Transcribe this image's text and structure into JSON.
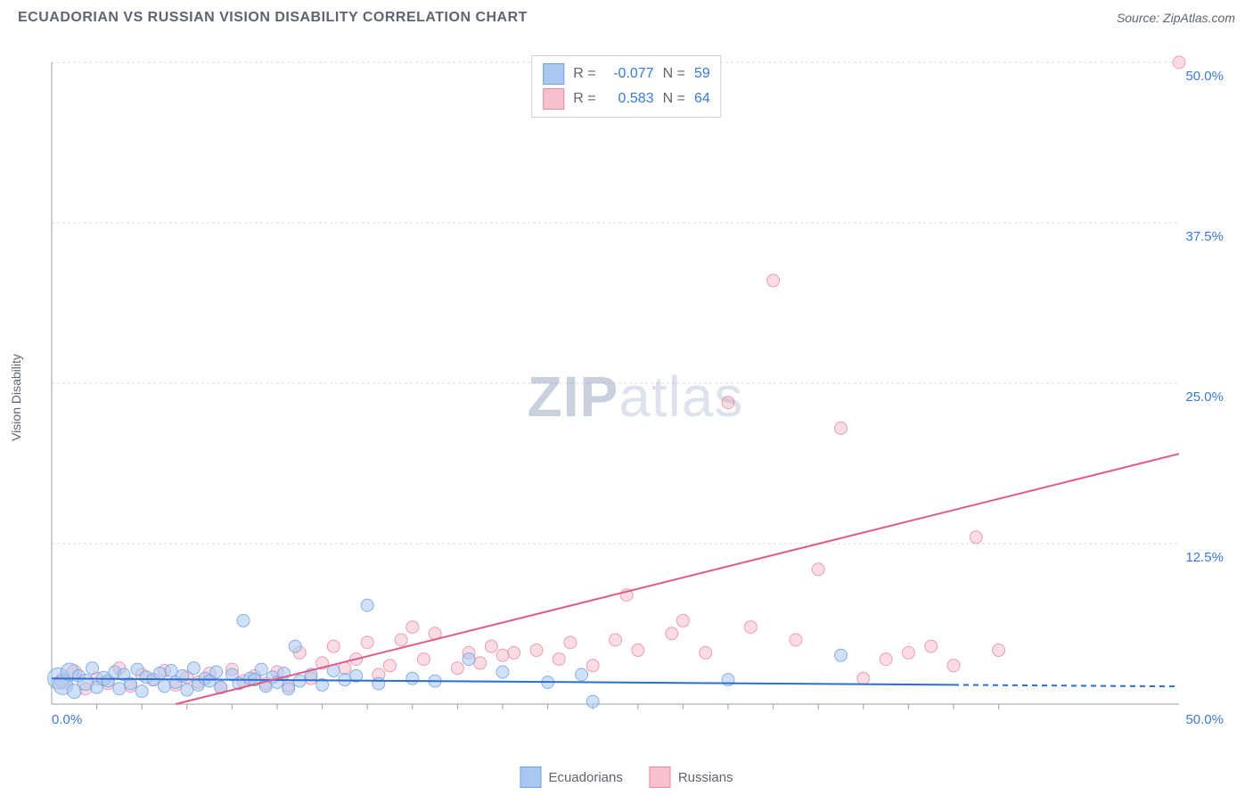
{
  "header": {
    "title": "ECUADORIAN VS RUSSIAN VISION DISABILITY CORRELATION CHART",
    "source_prefix": "Source: ",
    "source_site": "ZipAtlas.com"
  },
  "watermark": {
    "zip": "ZIP",
    "atlas": "atlas"
  },
  "axes": {
    "y_label": "Vision Disability",
    "x_min": 0,
    "x_max": 50,
    "y_min": 0,
    "y_max": 50,
    "x_tick_labels": {
      "start": "0.0%",
      "end": "50.0%"
    },
    "y_ticks": [
      {
        "v": 12.5,
        "label": "12.5%"
      },
      {
        "v": 25.0,
        "label": "25.0%"
      },
      {
        "v": 37.5,
        "label": "37.5%"
      },
      {
        "v": 50.0,
        "label": "50.0%"
      }
    ],
    "x_minor_ticks": [
      2,
      4,
      6,
      8,
      10,
      12,
      14,
      16,
      18,
      20,
      22,
      24,
      26,
      28,
      30,
      32,
      34,
      36,
      38,
      40,
      42
    ],
    "y_tick_label_color": "#3a7bd5",
    "x_tick_label_color": "#3a7bd5",
    "axis_label_color": "#5f6470",
    "grid_color": "#d8d8d8",
    "axis_line_color": "#9aa0a6"
  },
  "styling": {
    "blue_fill": "#a9c7f0",
    "blue_stroke": "#6fa1e0",
    "pink_fill": "#f6c1cd",
    "pink_stroke": "#e88aa0",
    "blue_line": "#2a6fd6",
    "pink_line": "#e05a89",
    "marker_radius": 7,
    "marker_opacity": 0.55,
    "line_width": 2,
    "background": "#ffffff",
    "title_fontsize": 16,
    "label_fontsize": 14
  },
  "stats_legend": {
    "rows": [
      {
        "swatch_fill": "#a9c7f0",
        "swatch_stroke": "#6fa1e0",
        "r_label": "R =",
        "r": "-0.077",
        "n_label": "N =",
        "n": "59"
      },
      {
        "swatch_fill": "#f6c1cd",
        "swatch_stroke": "#e88aa0",
        "r_label": "R =",
        "r": "0.583",
        "n_label": "N =",
        "n": "64"
      }
    ]
  },
  "bottom_legend": {
    "items": [
      {
        "label": "Ecuadorians",
        "fill": "#a9c7f0",
        "stroke": "#6fa1e0"
      },
      {
        "label": "Russians",
        "fill": "#f6c1cd",
        "stroke": "#e88aa0"
      }
    ]
  },
  "trend_lines": {
    "blue": {
      "x1": 0,
      "y1": 2.0,
      "x2": 40,
      "y2": 1.5,
      "dashed_to_x": 50
    },
    "pink": {
      "x1": 5.5,
      "y1": 0,
      "x2": 50,
      "y2": 19.5
    }
  },
  "series": {
    "ecuadorians": [
      {
        "x": 0.3,
        "y": 2.0,
        "r": 12
      },
      {
        "x": 0.5,
        "y": 1.5,
        "r": 11
      },
      {
        "x": 0.8,
        "y": 2.5,
        "r": 10
      },
      {
        "x": 1.0,
        "y": 1.0,
        "r": 8
      },
      {
        "x": 1.2,
        "y": 2.2,
        "r": 7
      },
      {
        "x": 1.5,
        "y": 1.7,
        "r": 9
      },
      {
        "x": 1.8,
        "y": 2.8,
        "r": 7
      },
      {
        "x": 2.0,
        "y": 1.3,
        "r": 7
      },
      {
        "x": 2.3,
        "y": 2.0,
        "r": 8
      },
      {
        "x": 2.5,
        "y": 1.8,
        "r": 7
      },
      {
        "x": 2.8,
        "y": 2.5,
        "r": 7
      },
      {
        "x": 3.0,
        "y": 1.2,
        "r": 7
      },
      {
        "x": 3.2,
        "y": 2.3,
        "r": 7
      },
      {
        "x": 3.5,
        "y": 1.6,
        "r": 7
      },
      {
        "x": 3.8,
        "y": 2.7,
        "r": 7
      },
      {
        "x": 4.0,
        "y": 1.0,
        "r": 7
      },
      {
        "x": 4.2,
        "y": 2.1,
        "r": 7
      },
      {
        "x": 4.5,
        "y": 1.9,
        "r": 7
      },
      {
        "x": 4.8,
        "y": 2.4,
        "r": 7
      },
      {
        "x": 5.0,
        "y": 1.4,
        "r": 7
      },
      {
        "x": 5.3,
        "y": 2.6,
        "r": 7
      },
      {
        "x": 5.5,
        "y": 1.7,
        "r": 7
      },
      {
        "x": 5.8,
        "y": 2.2,
        "r": 7
      },
      {
        "x": 6.0,
        "y": 1.1,
        "r": 7
      },
      {
        "x": 6.3,
        "y": 2.8,
        "r": 7
      },
      {
        "x": 6.5,
        "y": 1.5,
        "r": 7
      },
      {
        "x": 6.8,
        "y": 2.0,
        "r": 7
      },
      {
        "x": 7.0,
        "y": 1.8,
        "r": 7
      },
      {
        "x": 7.3,
        "y": 2.5,
        "r": 7
      },
      {
        "x": 7.5,
        "y": 1.3,
        "r": 7
      },
      {
        "x": 8.0,
        "y": 2.3,
        "r": 7
      },
      {
        "x": 8.3,
        "y": 1.6,
        "r": 7
      },
      {
        "x": 8.5,
        "y": 6.5,
        "r": 7
      },
      {
        "x": 8.8,
        "y": 2.0,
        "r": 7
      },
      {
        "x": 9.0,
        "y": 1.9,
        "r": 7
      },
      {
        "x": 9.3,
        "y": 2.7,
        "r": 7
      },
      {
        "x": 9.5,
        "y": 1.4,
        "r": 7
      },
      {
        "x": 9.8,
        "y": 2.1,
        "r": 7
      },
      {
        "x": 10.0,
        "y": 1.7,
        "r": 7
      },
      {
        "x": 10.3,
        "y": 2.4,
        "r": 7
      },
      {
        "x": 10.5,
        "y": 1.2,
        "r": 7
      },
      {
        "x": 10.8,
        "y": 4.5,
        "r": 7
      },
      {
        "x": 11.0,
        "y": 1.8,
        "r": 7
      },
      {
        "x": 11.5,
        "y": 2.3,
        "r": 7
      },
      {
        "x": 12.0,
        "y": 1.5,
        "r": 7
      },
      {
        "x": 12.5,
        "y": 2.6,
        "r": 7
      },
      {
        "x": 13.0,
        "y": 1.9,
        "r": 7
      },
      {
        "x": 13.5,
        "y": 2.2,
        "r": 7
      },
      {
        "x": 14.0,
        "y": 7.7,
        "r": 7
      },
      {
        "x": 14.5,
        "y": 1.6,
        "r": 7
      },
      {
        "x": 16.0,
        "y": 2.0,
        "r": 7
      },
      {
        "x": 17.0,
        "y": 1.8,
        "r": 7
      },
      {
        "x": 18.5,
        "y": 3.5,
        "r": 7
      },
      {
        "x": 20.0,
        "y": 2.5,
        "r": 7
      },
      {
        "x": 22.0,
        "y": 1.7,
        "r": 7
      },
      {
        "x": 23.5,
        "y": 2.3,
        "r": 7
      },
      {
        "x": 24.0,
        "y": 0.2,
        "r": 7
      },
      {
        "x": 30.0,
        "y": 1.9,
        "r": 7
      },
      {
        "x": 35.0,
        "y": 3.8,
        "r": 7
      }
    ],
    "russians": [
      {
        "x": 0.5,
        "y": 1.8,
        "r": 9
      },
      {
        "x": 1.0,
        "y": 2.5,
        "r": 8
      },
      {
        "x": 1.5,
        "y": 1.2,
        "r": 7
      },
      {
        "x": 2.0,
        "y": 2.0,
        "r": 7
      },
      {
        "x": 2.5,
        "y": 1.6,
        "r": 7
      },
      {
        "x": 3.0,
        "y": 2.8,
        "r": 7
      },
      {
        "x": 3.5,
        "y": 1.4,
        "r": 7
      },
      {
        "x": 4.0,
        "y": 2.3,
        "r": 7
      },
      {
        "x": 4.5,
        "y": 1.9,
        "r": 7
      },
      {
        "x": 5.0,
        "y": 2.6,
        "r": 7
      },
      {
        "x": 5.5,
        "y": 1.5,
        "r": 7
      },
      {
        "x": 6.0,
        "y": 2.1,
        "r": 7
      },
      {
        "x": 6.5,
        "y": 1.7,
        "r": 7
      },
      {
        "x": 7.0,
        "y": 2.4,
        "r": 7
      },
      {
        "x": 7.5,
        "y": 1.3,
        "r": 7
      },
      {
        "x": 8.0,
        "y": 2.7,
        "r": 7
      },
      {
        "x": 8.5,
        "y": 1.8,
        "r": 7
      },
      {
        "x": 9.0,
        "y": 2.2,
        "r": 7
      },
      {
        "x": 9.5,
        "y": 1.6,
        "r": 7
      },
      {
        "x": 10.0,
        "y": 2.5,
        "r": 7
      },
      {
        "x": 10.5,
        "y": 1.4,
        "r": 7
      },
      {
        "x": 11.0,
        "y": 4.0,
        "r": 7
      },
      {
        "x": 11.5,
        "y": 2.0,
        "r": 7
      },
      {
        "x": 12.0,
        "y": 3.2,
        "r": 7
      },
      {
        "x": 12.5,
        "y": 4.5,
        "r": 7
      },
      {
        "x": 13.0,
        "y": 2.8,
        "r": 7
      },
      {
        "x": 13.5,
        "y": 3.5,
        "r": 7
      },
      {
        "x": 14.0,
        "y": 4.8,
        "r": 7
      },
      {
        "x": 14.5,
        "y": 2.3,
        "r": 7
      },
      {
        "x": 15.0,
        "y": 3.0,
        "r": 7
      },
      {
        "x": 15.5,
        "y": 5.0,
        "r": 7
      },
      {
        "x": 16.0,
        "y": 6.0,
        "r": 7
      },
      {
        "x": 16.5,
        "y": 3.5,
        "r": 7
      },
      {
        "x": 17.0,
        "y": 5.5,
        "r": 7
      },
      {
        "x": 18.0,
        "y": 2.8,
        "r": 7
      },
      {
        "x": 18.5,
        "y": 4.0,
        "r": 7
      },
      {
        "x": 19.0,
        "y": 3.2,
        "r": 7
      },
      {
        "x": 19.5,
        "y": 4.5,
        "r": 7
      },
      {
        "x": 20.5,
        "y": 4.0,
        "r": 7
      },
      {
        "x": 20.0,
        "y": 3.8,
        "r": 7
      },
      {
        "x": 21.5,
        "y": 4.2,
        "r": 7
      },
      {
        "x": 22.5,
        "y": 3.5,
        "r": 7
      },
      {
        "x": 23.0,
        "y": 4.8,
        "r": 7
      },
      {
        "x": 24.0,
        "y": 3.0,
        "r": 7
      },
      {
        "x": 25.0,
        "y": 5.0,
        "r": 7
      },
      {
        "x": 25.5,
        "y": 8.5,
        "r": 7
      },
      {
        "x": 26.0,
        "y": 4.2,
        "r": 7
      },
      {
        "x": 27.5,
        "y": 5.5,
        "r": 7
      },
      {
        "x": 28.0,
        "y": 6.5,
        "r": 7
      },
      {
        "x": 29.0,
        "y": 4.0,
        "r": 7
      },
      {
        "x": 30.0,
        "y": 23.5,
        "r": 7
      },
      {
        "x": 31.0,
        "y": 6.0,
        "r": 7
      },
      {
        "x": 32.0,
        "y": 33.0,
        "r": 7
      },
      {
        "x": 33.0,
        "y": 5.0,
        "r": 7
      },
      {
        "x": 34.0,
        "y": 10.5,
        "r": 7
      },
      {
        "x": 35.0,
        "y": 21.5,
        "r": 7
      },
      {
        "x": 36.0,
        "y": 2.0,
        "r": 7
      },
      {
        "x": 37.0,
        "y": 3.5,
        "r": 7
      },
      {
        "x": 38.0,
        "y": 4.0,
        "r": 7
      },
      {
        "x": 39.0,
        "y": 4.5,
        "r": 7
      },
      {
        "x": 40.0,
        "y": 3.0,
        "r": 7
      },
      {
        "x": 41.0,
        "y": 13.0,
        "r": 7
      },
      {
        "x": 42.0,
        "y": 4.2,
        "r": 7
      },
      {
        "x": 50.0,
        "y": 50.0,
        "r": 7
      }
    ]
  }
}
